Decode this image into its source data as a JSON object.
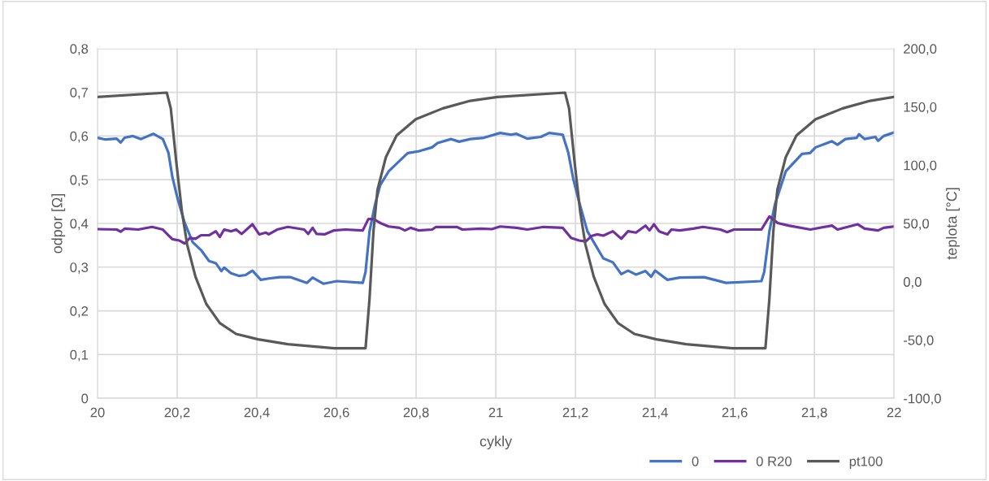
{
  "chart_data": {
    "type": "line",
    "xlabel": "cykly",
    "ylabel": "odpor [Ω]",
    "y2label": "teplota [°C]",
    "xlim": [
      20,
      22
    ],
    "xticks": [
      20,
      {
        "value": 20.2,
        "label": "20,2"
      },
      {
        "value": 20.4,
        "label": "20,4"
      },
      {
        "value": 20.6,
        "label": "20,6"
      },
      {
        "value": 20.8,
        "label": "20,8"
      },
      21,
      {
        "value": 21.2,
        "label": "21,2"
      },
      {
        "value": 21.4,
        "label": "21,4"
      },
      {
        "value": 21.6,
        "label": "21,6"
      },
      {
        "value": 21.8,
        "label": "21,8"
      },
      22
    ],
    "ylim": [
      0,
      0.8
    ],
    "yticks": [
      0,
      {
        "value": 0.1,
        "label": "0,1"
      },
      {
        "value": 0.2,
        "label": "0,2"
      },
      {
        "value": 0.3,
        "label": "0,3"
      },
      {
        "value": 0.4,
        "label": "0,4"
      },
      {
        "value": 0.5,
        "label": "0,5"
      },
      {
        "value": 0.6,
        "label": "0,6"
      },
      {
        "value": 0.7,
        "label": "0,7"
      },
      {
        "value": 0.8,
        "label": "0,8"
      }
    ],
    "y2lim": [
      -100,
      200
    ],
    "y2ticks": [
      {
        "value": -100,
        "label": "-100,0"
      },
      {
        "value": -50,
        "label": "-50,0"
      },
      {
        "value": 0,
        "label": "0,0"
      },
      {
        "value": 50,
        "label": "50,0"
      },
      {
        "value": 100,
        "label": "100,0"
      },
      {
        "value": 150,
        "label": "150,0"
      },
      {
        "value": 200,
        "label": "200,0"
      }
    ],
    "grid": true,
    "legend": "bottom right",
    "marker": "none",
    "line_style": "solid",
    "series": [
      {
        "name": "0",
        "color": "#4472c4",
        "x": [
          20.0,
          20.02,
          20.048,
          20.058,
          20.068,
          20.089,
          20.109,
          20.14,
          20.164,
          20.178,
          20.188,
          20.201,
          20.219,
          20.239,
          20.26,
          20.28,
          20.297,
          20.311,
          20.318,
          20.335,
          20.355,
          20.372,
          20.389,
          20.41,
          20.43,
          20.458,
          20.485,
          20.526,
          20.54,
          20.567,
          20.601,
          20.666,
          20.673,
          20.683,
          20.697,
          20.71,
          20.731,
          20.758,
          20.779,
          20.806,
          20.84,
          20.854,
          20.888,
          20.908,
          20.936,
          20.97,
          21.011,
          21.038,
          21.052,
          21.079,
          21.113,
          21.134,
          21.168,
          21.182,
          21.195,
          21.209,
          21.23,
          21.25,
          21.27,
          21.294,
          21.315,
          21.332,
          21.352,
          21.376,
          21.39,
          21.4,
          21.431,
          21.462,
          21.523,
          21.578,
          21.667,
          21.674,
          21.687,
          21.701,
          21.728,
          21.769,
          21.789,
          21.803,
          21.844,
          21.858,
          21.878,
          21.906,
          21.912,
          21.926,
          21.953,
          21.96,
          21.974,
          22.0
        ],
        "values": [
          0.596,
          0.592,
          0.594,
          0.585,
          0.596,
          0.6,
          0.593,
          0.605,
          0.593,
          0.562,
          0.506,
          0.457,
          0.401,
          0.357,
          0.339,
          0.314,
          0.309,
          0.291,
          0.299,
          0.286,
          0.28,
          0.282,
          0.292,
          0.271,
          0.274,
          0.277,
          0.277,
          0.264,
          0.276,
          0.262,
          0.268,
          0.264,
          0.289,
          0.382,
          0.444,
          0.488,
          0.519,
          0.543,
          0.561,
          0.565,
          0.574,
          0.584,
          0.593,
          0.587,
          0.593,
          0.596,
          0.607,
          0.603,
          0.605,
          0.594,
          0.598,
          0.607,
          0.603,
          0.562,
          0.5,
          0.45,
          0.382,
          0.351,
          0.32,
          0.311,
          0.284,
          0.292,
          0.283,
          0.291,
          0.278,
          0.292,
          0.271,
          0.276,
          0.277,
          0.264,
          0.268,
          0.289,
          0.382,
          0.444,
          0.519,
          0.559,
          0.561,
          0.574,
          0.588,
          0.58,
          0.593,
          0.596,
          0.604,
          0.593,
          0.598,
          0.589,
          0.6,
          0.608
        ]
      },
      {
        "name": "0 R20",
        "color": "#7030a0",
        "x": [
          20.0,
          20.048,
          20.058,
          20.068,
          20.102,
          20.137,
          20.164,
          20.178,
          20.188,
          20.205,
          20.219,
          20.232,
          20.246,
          20.26,
          20.28,
          20.297,
          20.307,
          20.318,
          20.335,
          20.348,
          20.362,
          20.389,
          20.406,
          20.423,
          20.43,
          20.451,
          20.478,
          20.519,
          20.529,
          20.54,
          20.55,
          20.57,
          20.594,
          20.622,
          20.666,
          20.68,
          20.693,
          20.71,
          20.731,
          20.758,
          20.772,
          20.786,
          20.806,
          20.84,
          20.85,
          20.902,
          20.916,
          20.963,
          20.99,
          21.011,
          21.052,
          21.079,
          21.12,
          21.168,
          21.189,
          21.209,
          21.226,
          21.24,
          21.254,
          21.27,
          21.294,
          21.315,
          21.332,
          21.352,
          21.376,
          21.386,
          21.397,
          21.41,
          21.431,
          21.441,
          21.462,
          21.496,
          21.52,
          21.564,
          21.581,
          21.598,
          21.667,
          21.687,
          21.708,
          21.735,
          21.79,
          21.844,
          21.858,
          21.909,
          21.926,
          21.96,
          21.974,
          22.0
        ],
        "values": [
          0.387,
          0.386,
          0.381,
          0.388,
          0.386,
          0.392,
          0.386,
          0.373,
          0.364,
          0.361,
          0.354,
          0.367,
          0.365,
          0.373,
          0.373,
          0.382,
          0.369,
          0.386,
          0.382,
          0.386,
          0.376,
          0.398,
          0.375,
          0.379,
          0.375,
          0.386,
          0.392,
          0.386,
          0.376,
          0.39,
          0.376,
          0.375,
          0.384,
          0.386,
          0.384,
          0.41,
          0.41,
          0.401,
          0.393,
          0.39,
          0.384,
          0.39,
          0.384,
          0.386,
          0.392,
          0.392,
          0.386,
          0.388,
          0.387,
          0.393,
          0.39,
          0.386,
          0.392,
          0.39,
          0.367,
          0.361,
          0.359,
          0.371,
          0.375,
          0.372,
          0.382,
          0.365,
          0.382,
          0.379,
          0.395,
          0.384,
          0.398,
          0.382,
          0.375,
          0.386,
          0.384,
          0.388,
          0.392,
          0.386,
          0.38,
          0.386,
          0.386,
          0.416,
          0.401,
          0.395,
          0.386,
          0.395,
          0.386,
          0.398,
          0.388,
          0.384,
          0.39,
          0.393
        ]
      },
      {
        "name": "pt100",
        "color": "#595959",
        "axis": "y2",
        "x": [
          20.0,
          20.174,
          20.184,
          20.198,
          20.212,
          20.225,
          20.246,
          20.273,
          20.307,
          20.348,
          20.403,
          20.478,
          20.594,
          20.673,
          20.683,
          20.693,
          20.703,
          20.724,
          20.751,
          20.799,
          20.867,
          20.936,
          21.004,
          21.174,
          21.184,
          21.198,
          21.212,
          21.225,
          21.246,
          21.273,
          21.307,
          21.348,
          21.403,
          21.478,
          21.594,
          21.677,
          21.687,
          21.697,
          21.707,
          21.728,
          21.755,
          21.803,
          21.871,
          21.94,
          22.0
        ],
        "values": [
          158.5,
          162.2,
          148.7,
          102,
          60,
          32,
          4.2,
          -19,
          -35.5,
          -44.8,
          -49.4,
          -53.6,
          -57.1,
          -57.1,
          -14.5,
          43.8,
          78.8,
          106.8,
          125.4,
          139.4,
          148.7,
          155.2,
          158.5,
          162.2,
          148.7,
          102,
          60,
          32,
          4.2,
          -19,
          -35.5,
          -44.8,
          -49.4,
          -53.6,
          -57.1,
          -57.1,
          -14.5,
          43.8,
          78.8,
          106.8,
          125.4,
          139.4,
          148.7,
          155.2,
          158.5
        ]
      }
    ]
  }
}
